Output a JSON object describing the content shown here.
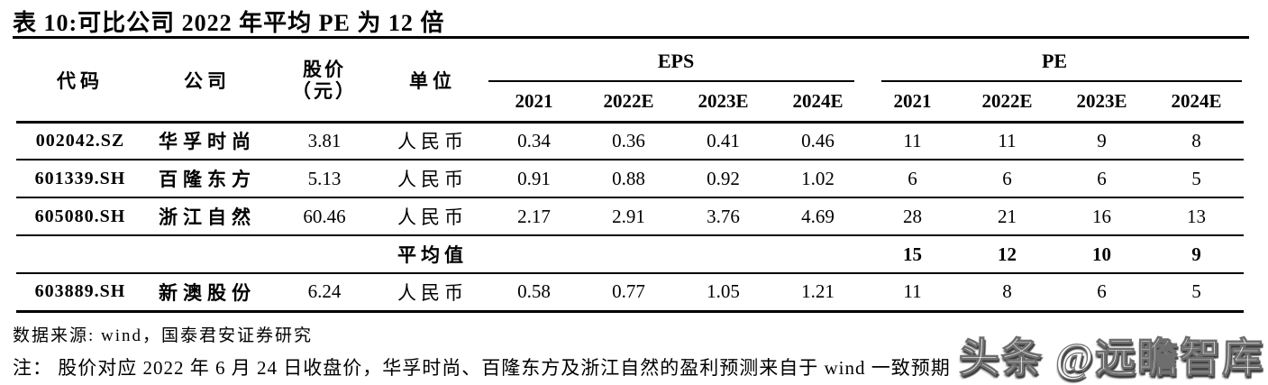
{
  "title": "表 10:可比公司 2022 年平均 PE 为 12 倍",
  "table": {
    "col_headers": {
      "code": "代码",
      "company": "公司",
      "price_line1": "股价",
      "price_line2": "（元）",
      "unit": "单位"
    },
    "groups": {
      "eps": "EPS",
      "pe": "PE"
    },
    "years": [
      "2021",
      "2022E",
      "2023E",
      "2024E"
    ],
    "rows": [
      {
        "code": "002042.SZ",
        "company": "华孚时尚",
        "price": "3.81",
        "unit": "人民币",
        "eps": [
          "0.34",
          "0.36",
          "0.41",
          "0.46"
        ],
        "pe": [
          "11",
          "11",
          "9",
          "8"
        ],
        "bold": false
      },
      {
        "code": "601339.SH",
        "company": "百隆东方",
        "price": "5.13",
        "unit": "人民币",
        "eps": [
          "0.91",
          "0.88",
          "0.92",
          "1.02"
        ],
        "pe": [
          "6",
          "6",
          "6",
          "5"
        ],
        "bold": false
      },
      {
        "code": "605080.SH",
        "company": "浙江自然",
        "price": "60.46",
        "unit": "人民币",
        "eps": [
          "2.17",
          "2.91",
          "3.76",
          "4.69"
        ],
        "pe": [
          "28",
          "21",
          "16",
          "13"
        ],
        "bold": false
      },
      {
        "code": "",
        "company": "",
        "price": "",
        "unit": "平均值",
        "eps": [
          "",
          "",
          "",
          ""
        ],
        "pe": [
          "15",
          "12",
          "10",
          "9"
        ],
        "bold": true
      },
      {
        "code": "603889.SH",
        "company": "新澳股份",
        "price": "6.24",
        "unit": "人民币",
        "eps": [
          "0.58",
          "0.77",
          "1.05",
          "1.21"
        ],
        "pe": [
          "11",
          "8",
          "6",
          "5"
        ],
        "bold": false
      }
    ]
  },
  "footer": {
    "source": "数据来源: wind，国泰君安证券研究",
    "note": "注： 股价对应 2022 年 6 月 24 日收盘价，华孚时尚、百隆东方及浙江自然的盈利预测来自于 wind 一致预期"
  },
  "watermark": "头条 @远瞻智库",
  "colors": {
    "text": "#000000",
    "background": "#ffffff",
    "rule": "#000000",
    "watermark_fill": "#ffffff",
    "watermark_shadow": "#3c3c3c"
  }
}
